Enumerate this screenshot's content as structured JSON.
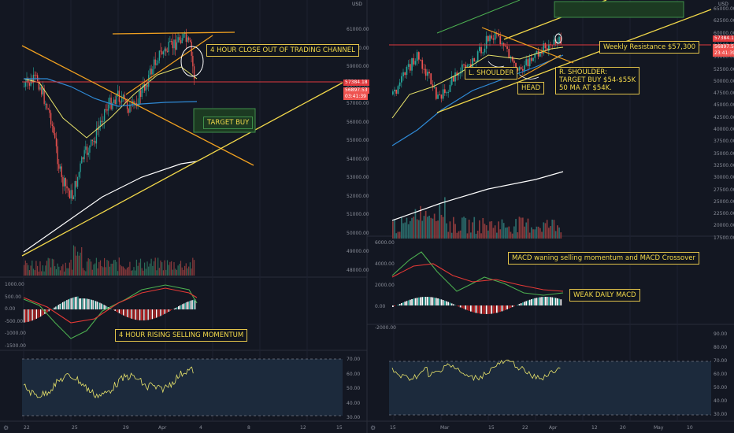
{
  "colors": {
    "background": "#131722",
    "bull": "#26a69a",
    "bear": "#ef5350",
    "annotation": "#f2d84a",
    "resistance": "#e03a3e",
    "ema_blue": "#2f8ad6",
    "trend_yellow": "#f2d84a",
    "ma_white": "#ffffff"
  },
  "left_chart": {
    "currency": "USD",
    "price_ticks": [
      "61000.00",
      "60000.00",
      "59000.00",
      "58000.00",
      "57000.00",
      "56000.00",
      "55000.00",
      "54000.00",
      "53000.00",
      "52000.00",
      "51000.00",
      "50000.00",
      "49000.00",
      "48000.00"
    ],
    "price_tag_red": "57384.18",
    "price_tag_last": "56897.53",
    "price_tag_timer": "03:41:39",
    "macd_ticks": [
      "1000.00",
      "500.00",
      "0.00",
      "-500.00",
      "-1000.00",
      "-1500.00"
    ],
    "rsi_ticks": [
      "70.00",
      "60.00",
      "50.00",
      "40.00",
      "30.00"
    ],
    "x_ticks": [
      "22",
      "25",
      "29",
      "Apr",
      "4",
      "8",
      "12",
      "15"
    ],
    "annotations": {
      "close_out": "4 HOUR CLOSE OUT OF TRADING CHANNEL",
      "target_buy": "TARGET BUY",
      "selling_momentum": "4 HOUR RISING SELLING MOMENTUM"
    }
  },
  "right_chart": {
    "currency": "USD",
    "price_ticks": [
      "65000.00",
      "62500.00",
      "60000.00",
      "57500.00",
      "55000.00",
      "52500.00",
      "50000.00",
      "47500.00",
      "45000.00",
      "42500.00",
      "40000.00",
      "37500.00",
      "35000.00",
      "32500.00",
      "30000.00",
      "27500.00",
      "25000.00",
      "22500.00",
      "20000.00",
      "17500.00"
    ],
    "price_tag_red": "57384.18",
    "price_tag_last": "56897.53",
    "price_tag_timer": "23:41:39",
    "macd_ticks": [
      "6000.00",
      "4000.00",
      "2000.00",
      "0.00",
      "-2000.00"
    ],
    "rsi_ticks": [
      "90.00",
      "80.00",
      "70.00",
      "60.00",
      "50.00",
      "40.00",
      "30.00"
    ],
    "x_ticks": [
      "15",
      "Mar",
      "15",
      "22",
      "Apr",
      "12",
      "20",
      "May",
      "10"
    ],
    "annotations": {
      "weekly_resistance": "Weekly Resistance $57,300",
      "l_shoulder": "L. SHOULDER",
      "head": "HEAD",
      "r_shoulder_1": "R. SHOULDER:",
      "r_shoulder_2": "TARGET BUY $54-$55K",
      "r_shoulder_3": "50 MA AT $54K.",
      "macd_crossover": "MACD waning selling momentum and MACD Crossover",
      "weak_macd": "WEAK DAILY MACD"
    }
  }
}
